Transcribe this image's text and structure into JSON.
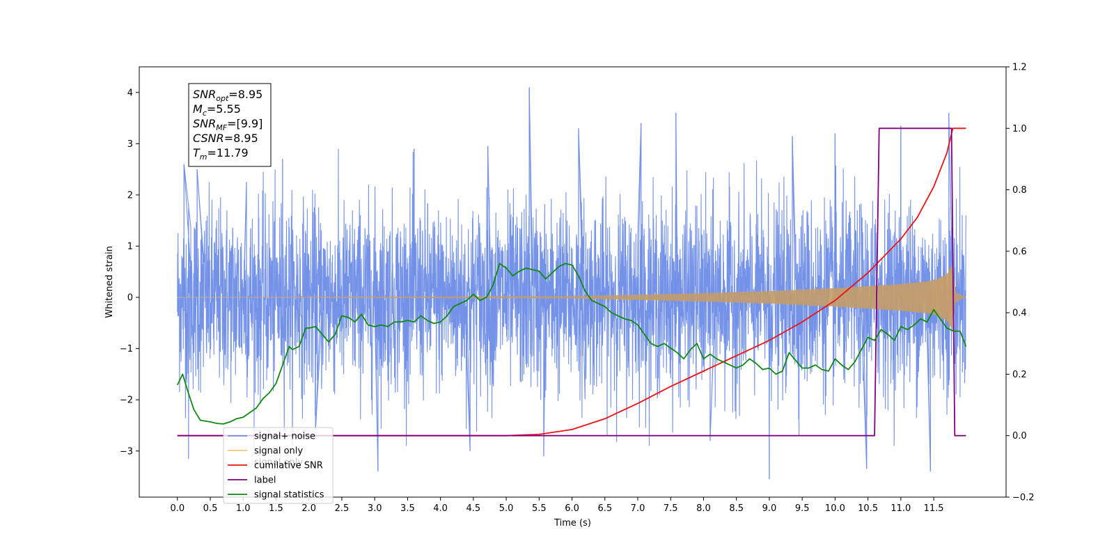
{
  "chart_data": {
    "type": "line",
    "title": "",
    "xlabel": "Time (s)",
    "ylabel": "Whitened strain",
    "y2label": "",
    "xlim": [
      -0.58,
      12.6
    ],
    "ylim": [
      -3.9,
      4.5
    ],
    "y2lim": [
      -0.2,
      1.2
    ],
    "x_ticks": [
      0.0,
      0.5,
      1.0,
      1.5,
      2.0,
      2.5,
      3.0,
      3.5,
      4.0,
      4.5,
      5.0,
      5.5,
      6.0,
      6.5,
      7.0,
      7.5,
      8.0,
      8.5,
      9.0,
      9.5,
      10.0,
      10.5,
      11.0,
      11.5
    ],
    "x_tick_labels": [
      "0.0",
      "0.5",
      "1.0",
      "1.5",
      "2.0",
      "2.5",
      "3.0",
      "3.5",
      "4.0",
      "4.5",
      "5.0",
      "5.5",
      "6.0",
      "6.5",
      "7.0",
      "7.5",
      "8.0",
      "8.5",
      "9.0",
      "9.5",
      "10.0",
      "10.5",
      "11.0",
      "11.5"
    ],
    "y_ticks": [
      -3,
      -2,
      -1,
      0,
      1,
      2,
      3,
      4
    ],
    "y_tick_labels": [
      "−3",
      "−2",
      "−1",
      "0",
      "1",
      "2",
      "3",
      "4"
    ],
    "y2_ticks": [
      -0.2,
      0.0,
      0.2,
      0.4,
      0.6,
      0.8,
      1.0,
      1.2
    ],
    "y2_tick_labels": [
      "−0.2",
      "0.0",
      "0.2",
      "0.4",
      "0.6",
      "0.8",
      "1.0",
      "1.2"
    ],
    "grid": false,
    "legend_position": "lower-left",
    "legend": [
      {
        "label": "signal+ noise",
        "color": "#6d8ce6"
      },
      {
        "label": "signal only",
        "color": "#ffc66d"
      },
      {
        "label": "cumilative SNR",
        "color": "#ee1111"
      },
      {
        "label": "label",
        "color": "#800080"
      },
      {
        "label": "signal statistics",
        "color": "#118811"
      }
    ],
    "hidden_legend_text": "signal only",
    "annotation": [
      {
        "base": "SNR",
        "sub": "opt",
        "value": "=8.95"
      },
      {
        "base": "M",
        "sub": "c",
        "value": "=5.55"
      },
      {
        "base": "SNR",
        "sub": "MF",
        "value": "=[9.9]"
      },
      {
        "base": "CSNR",
        "sub": "",
        "value": "=8.95"
      },
      {
        "base": "T",
        "sub": "m",
        "value": "=11.79"
      }
    ],
    "series": [
      {
        "name": "signal+ noise",
        "axis": "left",
        "color": "#6d8ce6",
        "style": "noise",
        "x_range": [
          0.0,
          11.99
        ],
        "typical_range": [
          -1.8,
          1.8
        ],
        "peaks": [
          {
            "x": 0.1,
            "y": 2.6
          },
          {
            "x": 0.17,
            "y": -3.15
          },
          {
            "x": 0.3,
            "y": 2.5
          },
          {
            "x": 1.05,
            "y": 2.25
          },
          {
            "x": 1.6,
            "y": 2.7
          },
          {
            "x": 2.1,
            "y": -2.6
          },
          {
            "x": 3.05,
            "y": -3.4
          },
          {
            "x": 3.6,
            "y": 2.9
          },
          {
            "x": 4.45,
            "y": -3.0
          },
          {
            "x": 4.72,
            "y": 2.95
          },
          {
            "x": 5.35,
            "y": 4.1
          },
          {
            "x": 5.57,
            "y": -3.1
          },
          {
            "x": 6.1,
            "y": 3.3
          },
          {
            "x": 7.05,
            "y": 3.4
          },
          {
            "x": 7.58,
            "y": 3.6
          },
          {
            "x": 8.1,
            "y": -2.8
          },
          {
            "x": 9.0,
            "y": -3.55
          },
          {
            "x": 9.35,
            "y": 3.15
          },
          {
            "x": 10.0,
            "y": 3.2
          },
          {
            "x": 10.48,
            "y": -3.35
          },
          {
            "x": 11.0,
            "y": 3.35
          },
          {
            "x": 11.45,
            "y": -3.4
          },
          {
            "x": 11.73,
            "y": 3.6
          }
        ]
      },
      {
        "name": "signal only",
        "axis": "left",
        "color": "#ffc66d",
        "style": "chirp",
        "x_range": [
          0.0,
          11.99
        ],
        "merger_time": 11.79,
        "envelope": [
          {
            "x": 0.0,
            "y": 0.0
          },
          {
            "x": 6.0,
            "y": 0.02
          },
          {
            "x": 7.0,
            "y": 0.05
          },
          {
            "x": 8.0,
            "y": 0.08
          },
          {
            "x": 9.0,
            "y": 0.12
          },
          {
            "x": 10.0,
            "y": 0.18
          },
          {
            "x": 10.5,
            "y": 0.22
          },
          {
            "x": 11.0,
            "y": 0.26
          },
          {
            "x": 11.5,
            "y": 0.33
          },
          {
            "x": 11.7,
            "y": 0.45
          },
          {
            "x": 11.79,
            "y": 0.65
          },
          {
            "x": 11.83,
            "y": 0.1
          },
          {
            "x": 11.99,
            "y": 0.0
          }
        ]
      },
      {
        "name": "cumilative SNR",
        "axis": "right",
        "color": "#ee1111",
        "x": [
          0.0,
          5.0,
          5.5,
          6.0,
          6.5,
          7.0,
          7.5,
          8.0,
          8.5,
          9.0,
          9.5,
          10.0,
          10.5,
          11.0,
          11.25,
          11.5,
          11.7,
          11.79,
          11.99
        ],
        "y": [
          0.0,
          0.0,
          0.004,
          0.02,
          0.055,
          0.105,
          0.16,
          0.21,
          0.26,
          0.31,
          0.37,
          0.44,
          0.53,
          0.64,
          0.71,
          0.81,
          0.92,
          1.0,
          1.0
        ]
      },
      {
        "name": "label",
        "axis": "right",
        "color": "#800080",
        "x": [
          0.0,
          10.6,
          10.67,
          11.77,
          11.82,
          11.99
        ],
        "y": [
          0.0,
          0.0,
          1.0,
          1.0,
          0.0,
          0.0
        ]
      },
      {
        "name": "signal statistics",
        "axis": "right",
        "color": "#118811",
        "x": [
          0.0,
          0.08,
          0.15,
          0.25,
          0.35,
          0.5,
          0.6,
          0.7,
          0.8,
          0.9,
          1.0,
          1.1,
          1.2,
          1.3,
          1.4,
          1.5,
          1.6,
          1.7,
          1.75,
          1.85,
          1.95,
          2.0,
          2.1,
          2.2,
          2.3,
          2.4,
          2.5,
          2.6,
          2.7,
          2.8,
          2.9,
          3.0,
          3.1,
          3.2,
          3.3,
          3.4,
          3.5,
          3.6,
          3.7,
          3.8,
          3.9,
          4.0,
          4.1,
          4.2,
          4.3,
          4.4,
          4.5,
          4.6,
          4.7,
          4.8,
          4.9,
          5.0,
          5.1,
          5.2,
          5.3,
          5.4,
          5.5,
          5.6,
          5.7,
          5.8,
          5.9,
          6.0,
          6.1,
          6.2,
          6.3,
          6.4,
          6.5,
          6.6,
          6.7,
          6.8,
          6.9,
          7.0,
          7.1,
          7.2,
          7.3,
          7.4,
          7.5,
          7.6,
          7.7,
          7.8,
          7.9,
          8.0,
          8.1,
          8.2,
          8.3,
          8.4,
          8.5,
          8.6,
          8.7,
          8.8,
          8.9,
          9.0,
          9.1,
          9.2,
          9.3,
          9.4,
          9.5,
          9.6,
          9.7,
          9.8,
          9.9,
          10.0,
          10.1,
          10.2,
          10.3,
          10.4,
          10.5,
          10.6,
          10.7,
          10.8,
          10.9,
          11.0,
          11.1,
          11.2,
          11.3,
          11.4,
          11.5,
          11.6,
          11.7,
          11.8,
          11.9,
          11.99
        ],
        "y": [
          0.165,
          0.2,
          0.15,
          0.085,
          0.05,
          0.045,
          0.04,
          0.038,
          0.045,
          0.055,
          0.06,
          0.075,
          0.09,
          0.12,
          0.14,
          0.17,
          0.23,
          0.29,
          0.28,
          0.29,
          0.35,
          0.35,
          0.355,
          0.33,
          0.305,
          0.33,
          0.39,
          0.385,
          0.37,
          0.395,
          0.36,
          0.355,
          0.36,
          0.355,
          0.37,
          0.37,
          0.375,
          0.37,
          0.39,
          0.375,
          0.365,
          0.37,
          0.39,
          0.42,
          0.43,
          0.44,
          0.46,
          0.44,
          0.45,
          0.49,
          0.56,
          0.545,
          0.52,
          0.535,
          0.545,
          0.54,
          0.535,
          0.51,
          0.53,
          0.55,
          0.56,
          0.555,
          0.52,
          0.47,
          0.44,
          0.43,
          0.42,
          0.4,
          0.39,
          0.38,
          0.375,
          0.36,
          0.33,
          0.3,
          0.29,
          0.3,
          0.285,
          0.27,
          0.25,
          0.28,
          0.3,
          0.25,
          0.265,
          0.25,
          0.24,
          0.23,
          0.22,
          0.23,
          0.25,
          0.235,
          0.215,
          0.22,
          0.2,
          0.21,
          0.27,
          0.245,
          0.22,
          0.22,
          0.23,
          0.215,
          0.21,
          0.25,
          0.23,
          0.215,
          0.24,
          0.28,
          0.32,
          0.31,
          0.345,
          0.33,
          0.31,
          0.355,
          0.345,
          0.36,
          0.38,
          0.37,
          0.41,
          0.38,
          0.35,
          0.34,
          0.34,
          0.29
        ]
      }
    ]
  }
}
